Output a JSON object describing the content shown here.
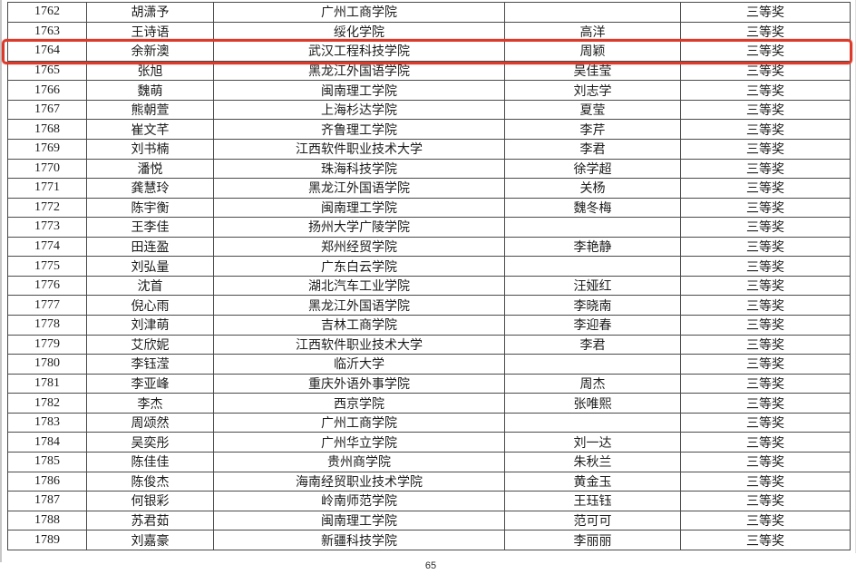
{
  "page": {
    "number": "65"
  },
  "table": {
    "highlighted_index": 2,
    "highlight_color": "#dc3a2a",
    "award_label": "三等奖",
    "rows": [
      [
        "1762",
        "胡潇予",
        "广州工商学院",
        "",
        "三等奖"
      ],
      [
        "1763",
        "王诗语",
        "绥化学院",
        "高洋",
        "三等奖"
      ],
      [
        "1764",
        "余新澳",
        "武汉工程科技学院",
        "周颖",
        "三等奖"
      ],
      [
        "1765",
        "张旭",
        "黑龙江外国语学院",
        "吴佳莹",
        "三等奖"
      ],
      [
        "1766",
        "魏萌",
        "闽南理工学院",
        "刘志学",
        "三等奖"
      ],
      [
        "1767",
        "熊朝萱",
        "上海杉达学院",
        "夏莹",
        "三等奖"
      ],
      [
        "1768",
        "崔文芊",
        "齐鲁理工学院",
        "李芹",
        "三等奖"
      ],
      [
        "1769",
        "刘书楠",
        "江西软件职业技术大学",
        "李君",
        "三等奖"
      ],
      [
        "1770",
        "潘悦",
        "珠海科技学院",
        "徐学超",
        "三等奖"
      ],
      [
        "1771",
        "龚慧玲",
        "黑龙江外国语学院",
        "关杨",
        "三等奖"
      ],
      [
        "1772",
        "陈宇衡",
        "闽南理工学院",
        "魏冬梅",
        "三等奖"
      ],
      [
        "1773",
        "王李佳",
        "扬州大学广陵学院",
        "",
        "三等奖"
      ],
      [
        "1774",
        "田连盈",
        "郑州经贸学院",
        "李艳静",
        "三等奖"
      ],
      [
        "1775",
        "刘弘量",
        "广东白云学院",
        "",
        "三等奖"
      ],
      [
        "1776",
        "沈首",
        "湖北汽车工业学院",
        "汪娅红",
        "三等奖"
      ],
      [
        "1777",
        "倪心雨",
        "黑龙江外国语学院",
        "李晓南",
        "三等奖"
      ],
      [
        "1778",
        "刘津萌",
        "吉林工商学院",
        "李迎春",
        "三等奖"
      ],
      [
        "1779",
        "艾欣妮",
        "江西软件职业技术大学",
        "李君",
        "三等奖"
      ],
      [
        "1780",
        "李钰滢",
        "临沂大学",
        "",
        "三等奖"
      ],
      [
        "1781",
        "李亚峰",
        "重庆外语外事学院",
        "周杰",
        "三等奖"
      ],
      [
        "1782",
        "李杰",
        "西京学院",
        "张唯熙",
        "三等奖"
      ],
      [
        "1783",
        "周颂然",
        "广州工商学院",
        "",
        "三等奖"
      ],
      [
        "1784",
        "吴奕彤",
        "广州华立学院",
        "刘一达",
        "三等奖"
      ],
      [
        "1785",
        "陈佳佳",
        "贵州商学院",
        "朱秋兰",
        "三等奖"
      ],
      [
        "1786",
        "陈俊杰",
        "海南经贸职业技术学院",
        "黄金玉",
        "三等奖"
      ],
      [
        "1787",
        "何银彩",
        "岭南师范学院",
        "王珏钰",
        "三等奖"
      ],
      [
        "1788",
        "苏君茹",
        "闽南理工学院",
        "范可可",
        "三等奖"
      ],
      [
        "1789",
        "刘嘉豪",
        "新疆科技学院",
        "李丽丽",
        "三等奖"
      ]
    ]
  }
}
